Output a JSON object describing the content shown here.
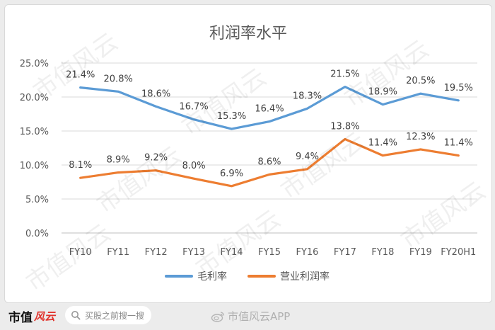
{
  "chart_data": {
    "type": "line",
    "title": "利润率水平",
    "categories": [
      "FY10",
      "FY11",
      "FY12",
      "FY13",
      "FY14",
      "FY15",
      "FY16",
      "FY17",
      "FY18",
      "FY19",
      "FY20H1"
    ],
    "series": [
      {
        "name": "毛利率",
        "color": "#5b9bd5",
        "values": [
          21.4,
          20.8,
          18.6,
          16.7,
          15.3,
          16.4,
          18.3,
          21.5,
          18.9,
          20.5,
          19.5
        ],
        "labels": [
          "21.4%",
          "20.8%",
          "18.6%",
          "16.7%",
          "15.3%",
          "16.4%",
          "18.3%",
          "21.5%",
          "18.9%",
          "20.5%",
          "19.5%"
        ]
      },
      {
        "name": "营业利润率",
        "color": "#ed7d31",
        "values": [
          8.1,
          8.9,
          9.2,
          8.0,
          6.9,
          8.6,
          9.4,
          13.8,
          11.4,
          12.3,
          11.4
        ],
        "labels": [
          "8.1%",
          "8.9%",
          "9.2%",
          "8.0%",
          "6.9%",
          "8.6%",
          "9.4%",
          "13.8%",
          "11.4%",
          "12.3%",
          "11.4%"
        ]
      }
    ],
    "ylim": [
      0,
      25
    ],
    "yticks": [
      0,
      5,
      10,
      15,
      20,
      25
    ],
    "ytick_labels": [
      "0.0%",
      "5.0%",
      "10.0%",
      "15.0%",
      "20.0%",
      "25.0%"
    ],
    "grid": true,
    "legend_position": "bottom"
  },
  "watermark": "市值风云",
  "footer": {
    "brand": "市值",
    "brand_logo": "风云",
    "search_placeholder": "买股之前搜一搜",
    "credit": "市值风云APP"
  }
}
